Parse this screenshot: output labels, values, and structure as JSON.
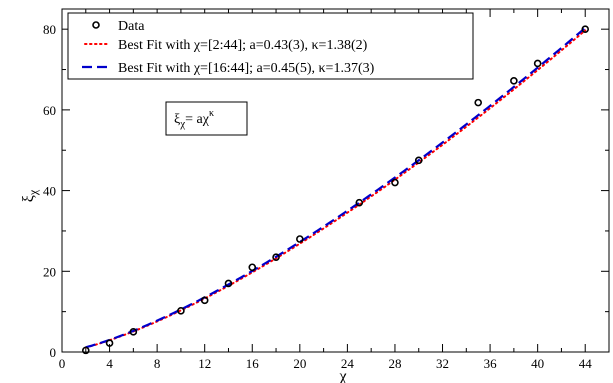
{
  "chart_data": {
    "type": "scatter",
    "xlabel": "χ",
    "ylabel": "ξ",
    "ylabel_sub": "χ",
    "xlim": [
      0,
      46
    ],
    "ylim": [
      0,
      85
    ],
    "xticks": [
      0,
      4,
      8,
      12,
      16,
      20,
      24,
      28,
      32,
      36,
      40,
      44
    ],
    "yticks": [
      0,
      20,
      40,
      60,
      80
    ],
    "grid": false,
    "legend_position": "top-left",
    "series": [
      {
        "name": "Data",
        "kind": "points",
        "color": "#000000",
        "x": [
          2,
          4,
          6,
          10,
          12,
          14,
          16,
          18,
          20,
          25,
          28,
          30,
          35,
          38,
          40,
          44
        ],
        "y": [
          0.4,
          2.2,
          5.0,
          10.2,
          12.8,
          17.0,
          21.0,
          23.5,
          28.0,
          37.0,
          42.0,
          47.5,
          61.8,
          67.2,
          71.5,
          80.0
        ]
      },
      {
        "name": "Best Fit with χ=[2:44]; a=0.43(3), κ=1.38(2)",
        "kind": "fit",
        "color": "#ff0000",
        "dash": "dotted",
        "a": 0.43,
        "kappa": 1.38,
        "range": [
          2,
          44
        ]
      },
      {
        "name": "Best Fit with χ=[16:44]; a=0.45(5), κ=1.37(3)",
        "kind": "fit",
        "color": "#0000cc",
        "dash": "dashed",
        "a": 0.45,
        "kappa": 1.37,
        "range": [
          2,
          44
        ]
      }
    ],
    "annotation": {
      "base": "ξ",
      "sub": "χ",
      "eq": "= aχ",
      "sup": "κ"
    }
  }
}
